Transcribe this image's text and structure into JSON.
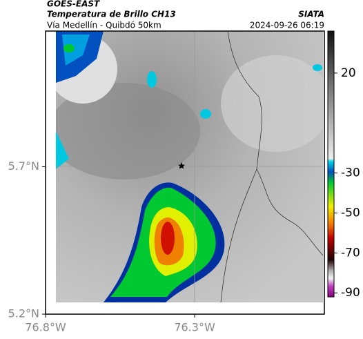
{
  "header": {
    "title": "GOES-EAST",
    "subtitle": "Temperatura de Brillo CH13",
    "route": "Vía Medellín - Quibdó 50km",
    "source": "SIATA",
    "timestamp": "2024-09-26 06:19"
  },
  "map": {
    "lon_range": [
      -76.8,
      -75.865
    ],
    "lat_range": [
      5.2,
      6.16
    ],
    "lon_ticks": [
      {
        "value": -76.8,
        "label": "76.8°W"
      },
      {
        "value": -76.3,
        "label": "76.3°W"
      }
    ],
    "lat_ticks": [
      {
        "value": 5.7,
        "label": "5.7°N"
      },
      {
        "value": 5.2,
        "label": "5.2°N"
      }
    ]
  },
  "colorbar": {
    "range": [
      -92,
      41
    ],
    "ticks": [
      20,
      -30,
      -50,
      -70,
      -90
    ]
  }
}
